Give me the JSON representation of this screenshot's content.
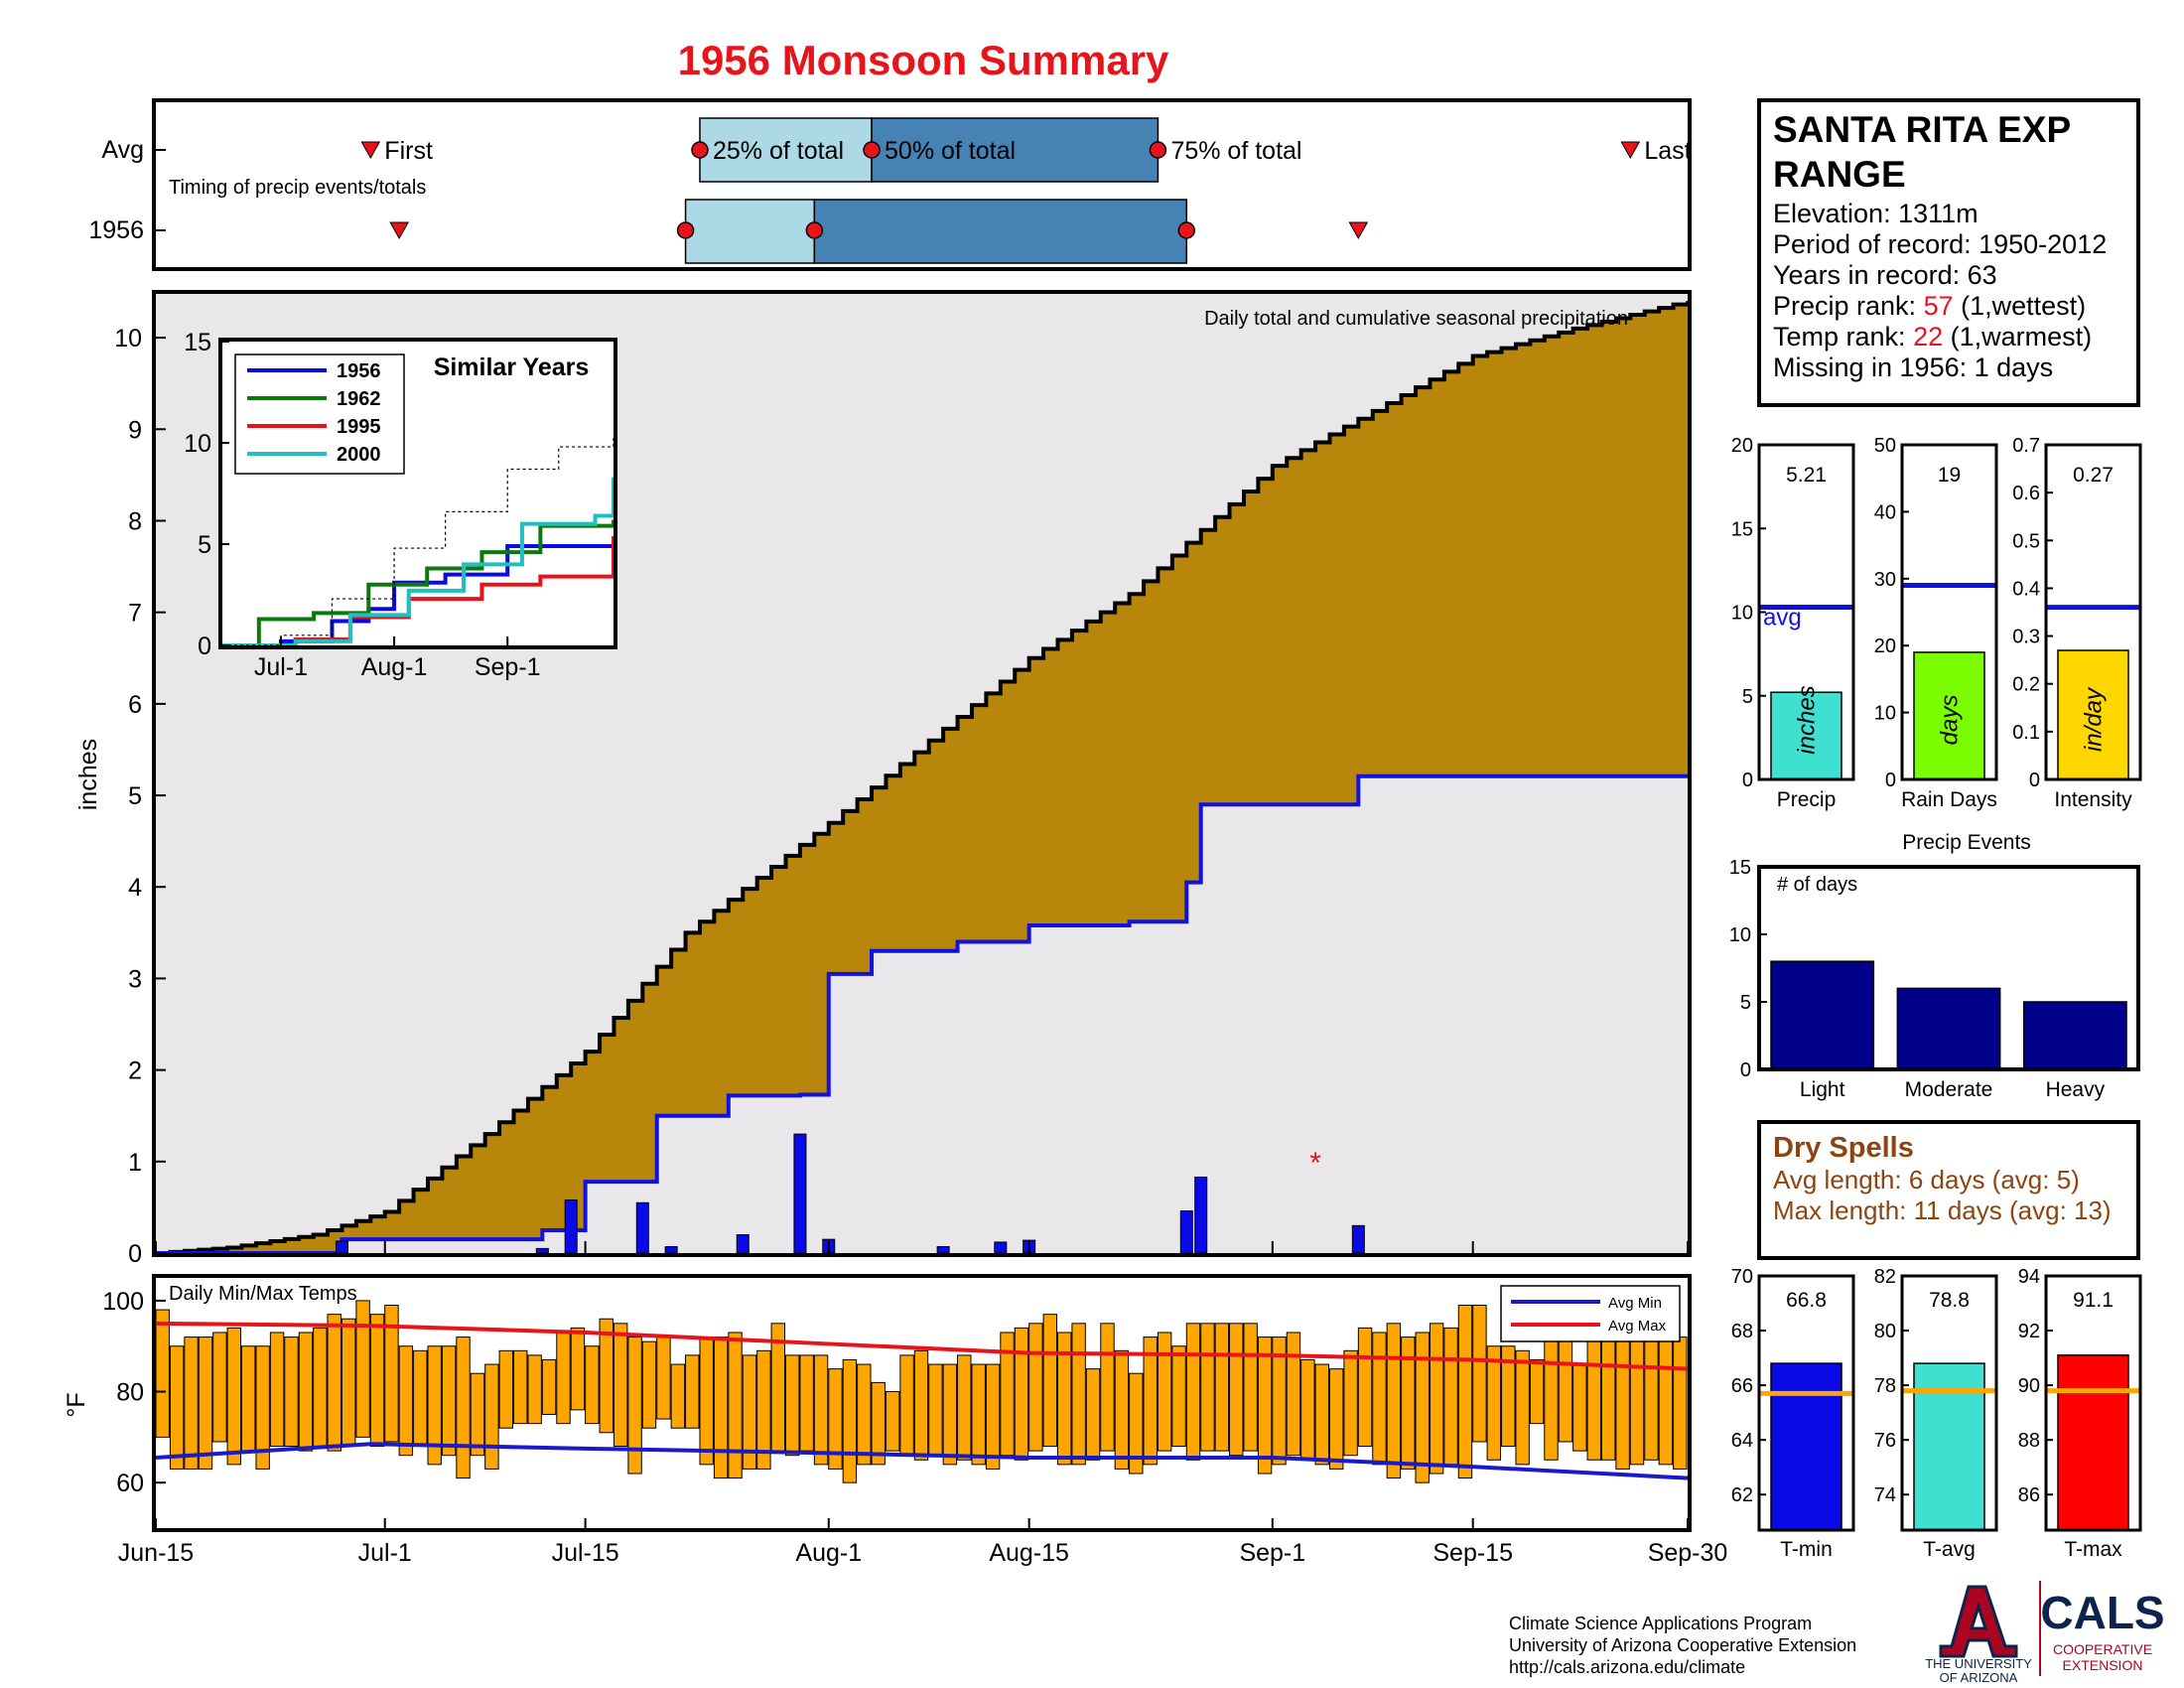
{
  "title": "1956 Monsoon Summary",
  "station": {
    "name_line1": "SANTA RITA EXP",
    "name_line2": "RANGE",
    "elevation": "Elevation: 1311m",
    "period": "Period of record: 1950-2012",
    "years": "Years in record: 63",
    "precip_rank_label": "Precip rank: ",
    "precip_rank_value": "57",
    "precip_rank_note": " (1,wettest)",
    "temp_rank_label": "Temp rank: ",
    "temp_rank_value": "22",
    "temp_rank_note": " (1,warmest)",
    "missing": "Missing in 1956: 1 days"
  },
  "colors": {
    "title": "#e8141c",
    "cumulative_avg_fill": "#b8860b",
    "season_fill": "#e9e7ea",
    "cumulative_line": "#1010e0",
    "bars_blue": "#0a0ae6",
    "temp_bars": "#ffa500",
    "avg_min": "#1a1acc",
    "avg_max": "#e8141c",
    "timing_light": "#add8e6",
    "timing_dark": "#4682b4",
    "marker": "#e8141c",
    "events_bar": "#00008b",
    "dry_spell_text": "#8b4513"
  },
  "timing": {
    "row_avg": "Avg",
    "row_year": "1956",
    "subtitle": "Timing of precip events/totals",
    "first_label": "First",
    "q25_label": "25% of total",
    "q50_label": "50% of total",
    "q75_label": "75% of total",
    "last_label": "Last",
    "avg_dates": {
      "first": "Jun-30",
      "q25": "Jul-23",
      "q50": "Aug-4",
      "q75": "Aug-24",
      "last": "Sep-26"
    },
    "year_dates": {
      "first": "Jul-2",
      "q25": "Jul-22",
      "q50": "Jul-31",
      "q75": "Aug-26",
      "last": "Sep-7"
    }
  },
  "chart_data": [
    {
      "type": "area",
      "name": "cumulative-precip",
      "annotation": "Daily total and cumulative seasonal precipitation",
      "ylabel": "inches",
      "ylim": [
        0,
        10.5
      ],
      "yticks": [
        0,
        1,
        2,
        3,
        4,
        5,
        6,
        7,
        8,
        9,
        10
      ],
      "xticks": [
        "Jun-15",
        "Jul-1",
        "Jul-15",
        "Aug-1",
        "Aug-15",
        "Sep-1",
        "Sep-15",
        "Sep-30"
      ],
      "avg_cumulative": {
        "x": [
          "Jun-15",
          "Jun-20",
          "Jun-26",
          "Jul-1",
          "Jul-8",
          "Jul-15",
          "Jul-22",
          "Aug-1",
          "Aug-8",
          "Aug-15",
          "Aug-22",
          "Sep-1",
          "Sep-8",
          "Sep-15",
          "Sep-22",
          "Sep-30"
        ],
        "y": [
          0,
          0.06,
          0.2,
          0.45,
          1.3,
          2.2,
          3.5,
          4.7,
          5.6,
          6.5,
          7.2,
          8.6,
          9.2,
          9.8,
          10.1,
          10.4
        ]
      },
      "year_cumulative": {
        "x": [
          "Jun-15",
          "Jun-28",
          "Jul-12",
          "Jul-15",
          "Jul-20",
          "Jul-25",
          "Jul-30",
          "Aug-1",
          "Aug-4",
          "Aug-10",
          "Aug-15",
          "Aug-22",
          "Aug-26",
          "Aug-27",
          "Sep-7",
          "Sep-30"
        ],
        "y": [
          0,
          0.15,
          0.25,
          0.78,
          1.5,
          1.72,
          1.73,
          3.05,
          3.3,
          3.4,
          3.58,
          3.62,
          4.05,
          4.9,
          5.21,
          5.21
        ]
      },
      "daily_bars": {
        "x": [
          "Jun-28",
          "Jul-12",
          "Jul-14",
          "Jul-19",
          "Jul-21",
          "Jul-26",
          "Jul-30",
          "Aug-1",
          "Aug-9",
          "Aug-13",
          "Aug-15",
          "Aug-26",
          "Aug-27",
          "Sep-7"
        ],
        "y": [
          0.13,
          0.05,
          0.58,
          0.55,
          0.07,
          0.2,
          1.3,
          0.15,
          0.07,
          0.12,
          0.14,
          0.46,
          0.83,
          0.3
        ]
      },
      "marker": {
        "label": "*",
        "x": "Sep-4",
        "y": 1.0
      }
    },
    {
      "type": "line",
      "name": "similar-years",
      "title": "Similar Years",
      "ylim": [
        0,
        15
      ],
      "yticks": [
        0,
        5,
        10,
        15
      ],
      "xticks": [
        "Jul-1",
        "Aug-1",
        "Sep-1"
      ],
      "series": [
        {
          "name": "1956",
          "color": "#0a0ae6",
          "x": [
            "Jun-15",
            "Jul-1",
            "Jul-15",
            "Jul-25",
            "Aug-1",
            "Aug-15",
            "Sep-1",
            "Sep-30"
          ],
          "y": [
            0,
            0.2,
            1.2,
            1.8,
            3.1,
            3.5,
            4.9,
            5.2
          ]
        },
        {
          "name": "1962",
          "color": "#0a7a0a",
          "x": [
            "Jun-15",
            "Jun-25",
            "Jul-10",
            "Jul-25",
            "Aug-10",
            "Aug-25",
            "Sep-10",
            "Sep-30"
          ],
          "y": [
            0,
            1.3,
            1.6,
            3.0,
            3.8,
            4.6,
            5.9,
            6.2
          ]
        },
        {
          "name": "1995",
          "color": "#e8141c",
          "x": [
            "Jun-15",
            "Jul-5",
            "Jul-20",
            "Aug-5",
            "Aug-25",
            "Sep-10",
            "Sep-30"
          ],
          "y": [
            0,
            0.3,
            1.4,
            2.3,
            3.0,
            3.4,
            5.4
          ]
        },
        {
          "name": "2000",
          "color": "#20c0c0",
          "x": [
            "Jun-15",
            "Jul-5",
            "Jul-20",
            "Aug-5",
            "Aug-20",
            "Sep-5",
            "Sep-25",
            "Sep-30"
          ],
          "y": [
            0,
            0.2,
            1.5,
            2.7,
            4.0,
            6.0,
            6.4,
            8.3
          ]
        },
        {
          "name": "avg",
          "color": "#000000",
          "x": [
            "Jun-15",
            "Jul-1",
            "Jul-15",
            "Aug-1",
            "Aug-15",
            "Sep-1",
            "Sep-15",
            "Sep-30"
          ],
          "y": [
            0,
            0.5,
            2.3,
            4.8,
            6.6,
            8.7,
            9.8,
            10.3
          ]
        }
      ]
    },
    {
      "type": "bar",
      "name": "daily-temps",
      "title": "Daily Min/Max Temps",
      "ylabel": "°F",
      "ylim": [
        50,
        105
      ],
      "yticks": [
        60,
        80,
        100
      ],
      "legend": [
        "Avg Min",
        "Avg Max"
      ],
      "legend_position": "top-right",
      "min_series": [
        70,
        63,
        63,
        63,
        69,
        64,
        67,
        63,
        68,
        68,
        67,
        68,
        67,
        68,
        70,
        68,
        69,
        66,
        68,
        64,
        66,
        61,
        66,
        63,
        72,
        73,
        73,
        75,
        73,
        76,
        73,
        71,
        68,
        62,
        72,
        74,
        72,
        72,
        64,
        61,
        61,
        63,
        63,
        67,
        66,
        67,
        64,
        63,
        60,
        64,
        64,
        67,
        66,
        65,
        66,
        64,
        65,
        64,
        63,
        66,
        65,
        67,
        68,
        64,
        64,
        65,
        67,
        63,
        62,
        64,
        67,
        68,
        65,
        67,
        67,
        66,
        67,
        62,
        64,
        66,
        65,
        64,
        63,
        66,
        68,
        64,
        61,
        63,
        60,
        62,
        64,
        61,
        69,
        65,
        68,
        64,
        73,
        65,
        69,
        67,
        65,
        65,
        63,
        64,
        65,
        64,
        63
      ],
      "max_series": [
        98,
        90,
        92,
        92,
        93,
        94,
        90,
        90,
        93,
        92,
        93,
        94,
        97,
        96,
        100,
        97,
        99,
        90,
        89,
        90,
        90,
        92,
        84,
        86,
        89,
        89,
        88,
        87,
        93,
        94,
        90,
        96,
        95,
        92,
        91,
        92,
        86,
        88,
        92,
        92,
        93,
        88,
        89,
        95,
        88,
        88,
        88,
        85,
        87,
        86,
        82,
        80,
        88,
        89,
        86,
        86,
        88,
        86,
        86,
        93,
        94,
        95,
        97,
        93,
        95,
        85,
        95,
        89,
        84,
        92,
        93,
        90,
        95,
        95,
        95,
        95,
        95,
        92,
        92,
        93,
        87,
        86,
        85,
        89,
        94,
        93,
        95,
        92,
        93,
        95,
        94,
        99,
        99,
        90,
        90,
        89,
        87,
        92,
        95,
        86,
        93,
        92,
        95,
        95,
        92,
        95,
        92
      ],
      "avg_min": {
        "x": [
          "Jun-15",
          "Jun-30",
          "Jul-15",
          "Aug-1",
          "Aug-15",
          "Sep-1",
          "Sep-15",
          "Sep-30"
        ],
        "y": [
          65.5,
          68.5,
          67.5,
          66.5,
          65.5,
          65.5,
          63.5,
          61
        ]
      },
      "avg_max": {
        "x": [
          "Jun-15",
          "Jun-30",
          "Jul-15",
          "Aug-1",
          "Aug-15",
          "Sep-1",
          "Sep-15",
          "Sep-30"
        ],
        "y": [
          95,
          94.5,
          93,
          90.5,
          88.5,
          88,
          87,
          85
        ]
      }
    },
    {
      "type": "bar",
      "name": "summary-precip",
      "label": "Precip",
      "bar_text": "inches",
      "value": 5.21,
      "value_label": "5.21",
      "avg": 10.3,
      "avg_label": "avg",
      "ylim": [
        0,
        20
      ],
      "yticks": [
        0,
        5,
        10,
        15,
        20
      ],
      "color": "#40e0d0"
    },
    {
      "type": "bar",
      "name": "summary-raindays",
      "label": "Rain Days",
      "bar_text": "days",
      "value": 19,
      "value_label": "19",
      "avg": 29,
      "ylim": [
        0,
        50
      ],
      "yticks": [
        0,
        10,
        20,
        30,
        40,
        50
      ],
      "color": "#7cfc00"
    },
    {
      "type": "bar",
      "name": "summary-intensity",
      "label": "Intensity",
      "bar_text": "in/day",
      "value": 0.27,
      "value_label": "0.27",
      "avg": 0.36,
      "ylim": [
        0,
        0.7
      ],
      "yticks": [
        0,
        0.1,
        0.2,
        0.3,
        0.4,
        0.5,
        0.6,
        0.7
      ],
      "color": "#ffd700"
    },
    {
      "type": "bar",
      "name": "precip-events",
      "title": "Precip Events",
      "annotation": "# of days",
      "categories": [
        "Light",
        "Moderate",
        "Heavy"
      ],
      "values": [
        8,
        6,
        5
      ],
      "ylim": [
        0,
        15
      ],
      "yticks": [
        0,
        5,
        10,
        15
      ]
    },
    {
      "type": "bar",
      "name": "temp-tmin",
      "label": "T-min",
      "value": 66.8,
      "value_label": "66.8",
      "avg": 65.7,
      "ylim": [
        60.7,
        70
      ],
      "yticks": [
        62,
        64,
        66,
        68,
        70
      ],
      "color": "#0a0ae6"
    },
    {
      "type": "bar",
      "name": "temp-tavg",
      "label": "T-avg",
      "value": 78.8,
      "value_label": "78.8",
      "avg": 77.8,
      "ylim": [
        72.7,
        82
      ],
      "yticks": [
        74,
        76,
        78,
        80,
        82
      ],
      "color": "#40e0d0"
    },
    {
      "type": "bar",
      "name": "temp-tmax",
      "label": "T-max",
      "value": 91.1,
      "value_label": "91.1",
      "avg": 89.8,
      "ylim": [
        84.7,
        94
      ],
      "yticks": [
        86,
        88,
        90,
        92,
        94
      ],
      "color": "#ff0000"
    }
  ],
  "dry_spells": {
    "title": "Dry Spells",
    "avg_length": "Avg length: 6 days (avg: 5)",
    "max_length": "Max length: 11 days (avg: 13)"
  },
  "credits": {
    "line1": "Climate Science Applications Program",
    "line2": "University of Arizona Cooperative Extension",
    "line3": "http://cals.arizona.edu/climate",
    "ua_line1": "THE UNIVERSITY",
    "ua_line2": "OF ARIZONA",
    "cals": "CALS",
    "cals_sub1": "COOPERATIVE",
    "cals_sub2": "EXTENSION"
  }
}
